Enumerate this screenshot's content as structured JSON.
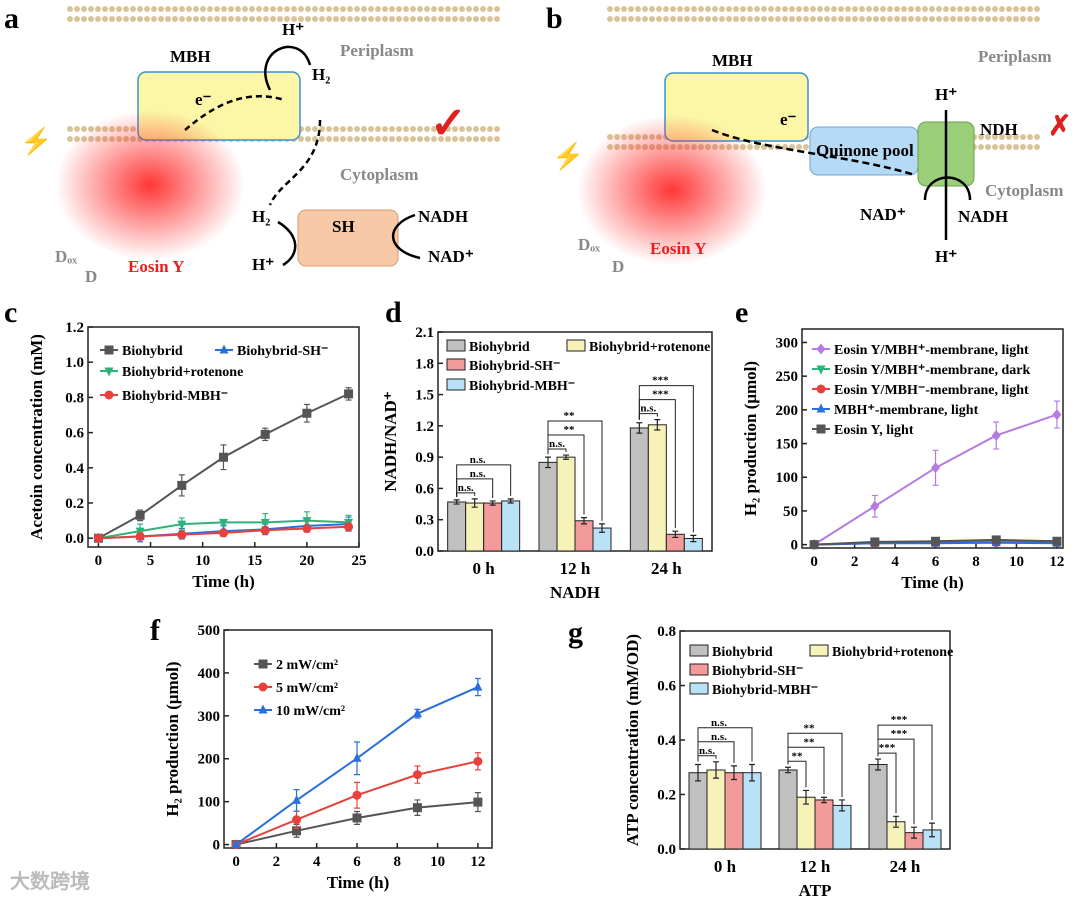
{
  "panels": {
    "a": "a",
    "b": "b",
    "c": "c",
    "d": "d",
    "e": "e",
    "f": "f",
    "g": "g"
  },
  "diagram_a": {
    "mbh": "MBH",
    "h_plus_top": "H⁺",
    "e_minus": "e⁻",
    "h2_top": "H₂",
    "periplasm": "Periplasm",
    "cytoplasm": "Cytoplasm",
    "sh": "SH",
    "nadh": "NADH",
    "nad_plus": "NAD⁺",
    "h2_bottom": "H₂",
    "h_plus_bottom": "H⁺",
    "dox": "Dₒₓ",
    "d": "D",
    "eosin": "Eosin Y",
    "check": "✓"
  },
  "diagram_b": {
    "mbh": "MBH",
    "e_minus": "e⁻",
    "periplasm": "Periplasm",
    "h_plus_top": "H⁺",
    "ndh": "NDH",
    "quinone": "Quinone pool",
    "cytoplasm": "Cytoplasm",
    "nad_plus": "NAD⁺",
    "nadh": "NADH",
    "h_plus_bottom": "H⁺",
    "dox": "Dₒₓ",
    "d": "D",
    "eosin": "Eosin Y",
    "cross": "✗"
  },
  "colors": {
    "gray": "#555555",
    "green": "#2db37a",
    "blue": "#2a6fdb",
    "red": "#e8413c",
    "purple": "#b57be0",
    "bar_gray": "#c0c0c0",
    "bar_yellow": "#f7f2b8",
    "bar_red": "#f39a9a",
    "bar_blue": "#b9e1f7"
  },
  "chart_data": [
    {
      "id": "c",
      "type": "line",
      "xlabel": "Time (h)",
      "ylabel": "Acetoin concentration (mM)",
      "xlim": [
        -1,
        25
      ],
      "ylim": [
        -0.05,
        1.2
      ],
      "xticks": [
        0,
        5,
        10,
        15,
        20,
        25
      ],
      "yticks": [
        "0.0",
        "0.2",
        "0.4",
        "0.6",
        "0.8",
        "1.0",
        "1.2"
      ],
      "x": [
        0,
        4,
        8,
        12,
        16,
        20,
        24
      ],
      "legend": "top-left",
      "series": [
        {
          "name": "Biohybrid",
          "color": "#555555",
          "marker": "square",
          "values": [
            0,
            0.13,
            0.3,
            0.46,
            0.59,
            0.71,
            0.82
          ],
          "err": [
            0.01,
            0.03,
            0.06,
            0.07,
            0.035,
            0.05,
            0.035
          ]
        },
        {
          "name": "Biohybrid-SH⁻",
          "color": "#2a6fdb",
          "marker": "triangle-up",
          "values": [
            0,
            0.01,
            0.025,
            0.04,
            0.05,
            0.07,
            0.08
          ],
          "err": [
            0.01,
            0.03,
            0.03,
            0.03,
            0.03,
            0.03,
            0.04
          ]
        },
        {
          "name": "Biohybrid+rotenone",
          "color": "#2db37a",
          "marker": "triangle-down",
          "values": [
            0,
            0.04,
            0.08,
            0.09,
            0.09,
            0.1,
            0.09
          ],
          "err": [
            0.01,
            0.04,
            0.035,
            0.015,
            0.05,
            0.05,
            0.04
          ]
        },
        {
          "name": "Biohybrid-MBH⁻",
          "color": "#e8413c",
          "marker": "circle",
          "values": [
            0,
            0.01,
            0.02,
            0.03,
            0.045,
            0.055,
            0.065
          ],
          "err": [
            0.01,
            0.02,
            0.02,
            0.02,
            0.02,
            0.02,
            0.02
          ]
        }
      ]
    },
    {
      "id": "d",
      "type": "bar",
      "xlabel": "NADH",
      "ylabel": "NADH/NAD⁺",
      "ylim": [
        0,
        2.1
      ],
      "yticks": [
        "0.0",
        "0.3",
        "0.6",
        "0.9",
        "1.2",
        "1.5",
        "1.8",
        "2.1"
      ],
      "categories": [
        "0 h",
        "12 h",
        "24 h"
      ],
      "legend": "top-left",
      "series": [
        {
          "name": "Biohybrid",
          "color": "#c0c0c0",
          "values": [
            0.47,
            0.85,
            1.18
          ],
          "err": [
            0.02,
            0.05,
            0.05
          ]
        },
        {
          "name": "Biohybrid+rotenone",
          "color": "#f7f2b8",
          "values": [
            0.46,
            0.9,
            1.21
          ],
          "err": [
            0.04,
            0.02,
            0.05
          ]
        },
        {
          "name": "Biohybrid-SH⁻",
          "color": "#f39a9a",
          "values": [
            0.46,
            0.29,
            0.16
          ],
          "err": [
            0.02,
            0.03,
            0.03
          ]
        },
        {
          "name": "Biohybrid-MBH⁻",
          "color": "#b9e1f7",
          "values": [
            0.48,
            0.22,
            0.12
          ],
          "err": [
            0.02,
            0.04,
            0.03
          ]
        }
      ],
      "significance": [
        [
          "n.s.",
          "n.s.",
          "n.s."
        ],
        [
          "n.s.",
          "**",
          "**"
        ],
        [
          "n.s.",
          "***",
          "***"
        ]
      ]
    },
    {
      "id": "e",
      "type": "line",
      "xlabel": "Time (h)",
      "ylabel": "H₂ production (μmol)",
      "xlim": [
        -0.6,
        12.3
      ],
      "ylim": [
        -5,
        320
      ],
      "xticks": [
        0,
        2,
        4,
        6,
        8,
        10,
        12
      ],
      "yticks": [
        "0",
        "50",
        "100",
        "150",
        "200",
        "250",
        "300"
      ],
      "x": [
        0,
        3,
        6,
        9,
        12
      ],
      "legend": "top-left",
      "series": [
        {
          "name": "Eosin Y/MBH⁺-membrane, light",
          "color": "#b57be0",
          "marker": "diamond",
          "values": [
            0,
            57,
            114,
            162,
            193
          ],
          "err": [
            3,
            16,
            26,
            20,
            20
          ]
        },
        {
          "name": "Eosin Y/MBH⁺-membrane, dark",
          "color": "#2db37a",
          "marker": "triangle-down",
          "values": [
            0,
            3,
            4,
            5,
            5
          ],
          "err": [
            1,
            2,
            2,
            2,
            2
          ]
        },
        {
          "name": "Eosin Y/MBH⁻-membrane, light",
          "color": "#e8413c",
          "marker": "circle",
          "values": [
            0,
            2,
            3,
            3,
            3
          ],
          "err": [
            1,
            1,
            1,
            1,
            1
          ]
        },
        {
          "name": "MBH⁺-membrane, light",
          "color": "#2a6fdb",
          "marker": "triangle-up",
          "values": [
            0,
            2,
            2,
            3,
            2
          ],
          "err": [
            1,
            1,
            1,
            1,
            1
          ]
        },
        {
          "name": "Eosin Y, light",
          "color": "#555555",
          "marker": "square",
          "values": [
            0,
            4,
            5,
            7,
            5
          ],
          "err": [
            1,
            2,
            2,
            2,
            2
          ]
        }
      ]
    },
    {
      "id": "f",
      "type": "line",
      "xlabel": "Time (h)",
      "ylabel": "H₂ production (μmol)",
      "xlim": [
        -0.6,
        12.7
      ],
      "ylim": [
        -8,
        500
      ],
      "xticks": [
        0,
        2,
        4,
        6,
        8,
        10,
        12
      ],
      "yticks": [
        "0",
        "100",
        "200",
        "300",
        "400",
        "500"
      ],
      "x": [
        0,
        3,
        6,
        9,
        12
      ],
      "legend": "top-left",
      "series": [
        {
          "name": "2 mW/cm²",
          "color": "#555555",
          "marker": "square",
          "values": [
            0,
            32,
            62,
            86,
            99
          ],
          "err": [
            3,
            15,
            15,
            18,
            22
          ]
        },
        {
          "name": "5 mW/cm²",
          "color": "#e8413c",
          "marker": "circle",
          "values": [
            0,
            58,
            115,
            163,
            194
          ],
          "err": [
            3,
            20,
            30,
            20,
            20
          ]
        },
        {
          "name": "10 mW/cm²",
          "color": "#2a6fdb",
          "marker": "triangle-up",
          "values": [
            0,
            103,
            201,
            305,
            367
          ],
          "err": [
            3,
            25,
            38,
            10,
            20
          ]
        }
      ]
    },
    {
      "id": "g",
      "type": "bar",
      "xlabel": "ATP",
      "ylabel": "ATP concentration (mM/OD)",
      "ylim": [
        0,
        0.8
      ],
      "yticks": [
        "0.0",
        "0.2",
        "0.4",
        "0.6",
        "0.8"
      ],
      "categories": [
        "0 h",
        "12 h",
        "24 h"
      ],
      "legend": "top-left",
      "series": [
        {
          "name": "Biohybrid",
          "color": "#c0c0c0",
          "values": [
            0.28,
            0.29,
            0.31
          ],
          "err": [
            0.03,
            0.01,
            0.02
          ]
        },
        {
          "name": "Biohybrid+rotenone",
          "color": "#f7f2b8",
          "values": [
            0.29,
            0.19,
            0.1
          ],
          "err": [
            0.03,
            0.025,
            0.02
          ]
        },
        {
          "name": "Biohybrid-SH⁻",
          "color": "#f39a9a",
          "values": [
            0.28,
            0.18,
            0.06
          ],
          "err": [
            0.025,
            0.01,
            0.02
          ]
        },
        {
          "name": "Biohybrid-MBH⁻",
          "color": "#b9e1f7",
          "values": [
            0.28,
            0.16,
            0.07
          ],
          "err": [
            0.03,
            0.02,
            0.025
          ]
        }
      ],
      "significance": [
        [
          "n.s.",
          "n.s.",
          "n.s."
        ],
        [
          "**",
          "**",
          "**"
        ],
        [
          "***",
          "***",
          "***"
        ]
      ]
    }
  ],
  "watermark": "大数跨境"
}
